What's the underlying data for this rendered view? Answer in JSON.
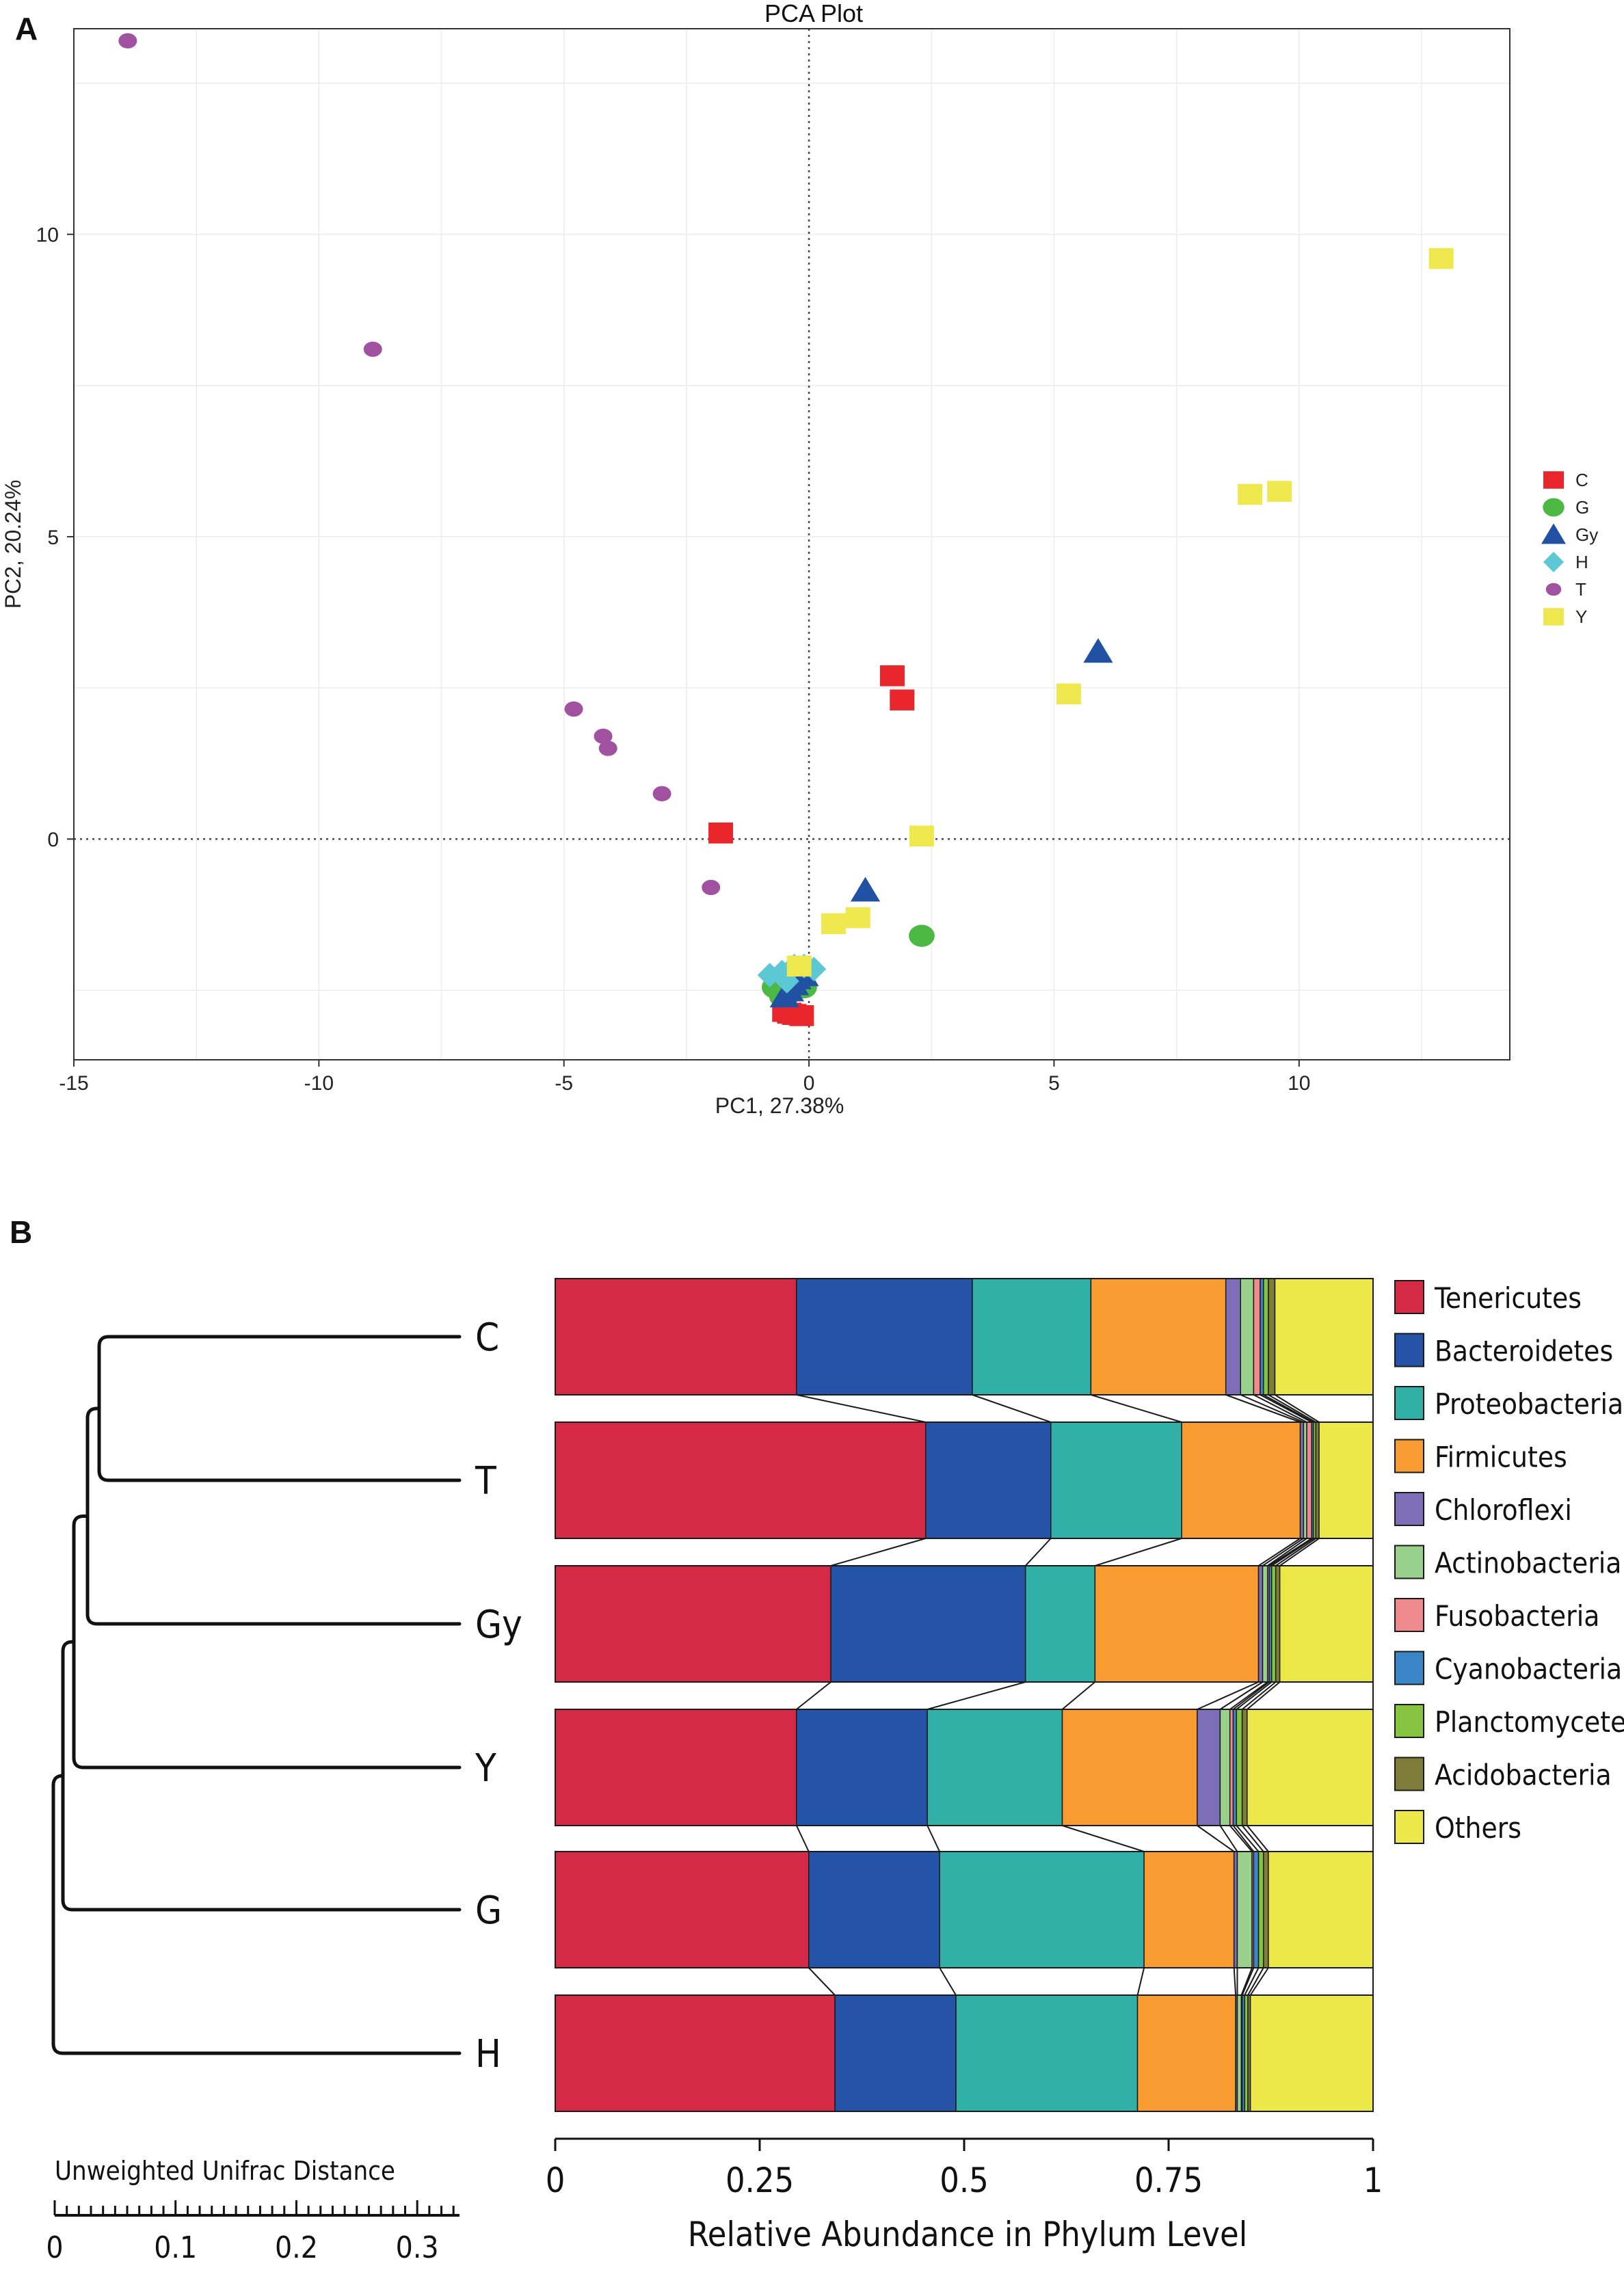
{
  "panels": {
    "a_label": "A",
    "b_label": "B"
  },
  "chart_data": [
    {
      "type": "scatter",
      "title": "PCA Plot",
      "xlabel": "PC1, 27.38%",
      "ylabel": "PC2, 20.24%",
      "xlim": [
        -15.0,
        14.3
      ],
      "ylim": [
        -3.65,
        13.4
      ],
      "xticks": [
        -15,
        -10,
        -5,
        0,
        5,
        10
      ],
      "yticks": [
        0,
        5,
        10
      ],
      "grid": true,
      "reference_lines": {
        "x": 0,
        "y": 0,
        "style": "dotted"
      },
      "legend_position": "right",
      "series": [
        {
          "name": "C",
          "marker": "square",
          "color": "#e8262b",
          "points": [
            [
              -1.8,
              0.1
            ],
            [
              1.7,
              2.7
            ],
            [
              1.9,
              2.3
            ],
            [
              -0.5,
              -2.85
            ],
            [
              -0.3,
              -2.9
            ],
            [
              -0.15,
              -2.92
            ],
            [
              -0.4,
              -2.88
            ]
          ]
        },
        {
          "name": "G",
          "marker": "circle",
          "color": "#4cb944",
          "points": [
            [
              2.3,
              -1.6
            ],
            [
              -0.7,
              -2.45
            ],
            [
              -0.5,
              -2.5
            ],
            [
              -0.1,
              -2.45
            ],
            [
              -0.25,
              -2.35
            ],
            [
              -0.55,
              -2.6
            ]
          ]
        },
        {
          "name": "Gy",
          "marker": "triangle",
          "color": "#2151a3",
          "points": [
            [
              5.9,
              3.1
            ],
            [
              1.15,
              -0.85
            ],
            [
              -0.1,
              -2.25
            ],
            [
              -0.3,
              -2.4
            ],
            [
              -0.4,
              -2.5
            ],
            [
              -0.5,
              -2.6
            ],
            [
              -0.25,
              -2.3
            ]
          ]
        },
        {
          "name": "H",
          "marker": "diamond",
          "color": "#5cc8d4",
          "points": [
            [
              -0.8,
              -2.25
            ],
            [
              -0.55,
              -2.2
            ],
            [
              -0.3,
              -2.1
            ],
            [
              -0.1,
              -2.1
            ],
            [
              0.1,
              -2.15
            ],
            [
              -0.45,
              -2.35
            ]
          ]
        },
        {
          "name": "T",
          "marker": "ellipse",
          "color": "#a0519f",
          "points": [
            [
              -13.9,
              13.2
            ],
            [
              -8.9,
              8.1
            ],
            [
              -4.8,
              2.15
            ],
            [
              -4.2,
              1.7
            ],
            [
              -4.1,
              1.5
            ],
            [
              -3.0,
              0.75
            ],
            [
              -2.0,
              -0.8
            ]
          ]
        },
        {
          "name": "Y",
          "marker": "square",
          "color": "#eee84e",
          "points": [
            [
              12.9,
              9.6
            ],
            [
              9.0,
              5.7
            ],
            [
              9.6,
              5.75
            ],
            [
              5.3,
              2.4
            ],
            [
              2.3,
              0.05
            ],
            [
              1.0,
              -1.3
            ],
            [
              0.5,
              -1.4
            ],
            [
              -0.2,
              -2.1
            ]
          ]
        }
      ]
    },
    {
      "type": "bar",
      "orientation": "horizontal",
      "stacked": true,
      "xlabel": "Relative Abundance in Phylum Level",
      "xlim": [
        0,
        1
      ],
      "xticks": [
        "0",
        "0.25",
        "0.5",
        "0.75",
        "1"
      ],
      "categories": [
        "C",
        "T",
        "Gy",
        "Y",
        "G",
        "H"
      ],
      "legend_position": "right",
      "series": [
        {
          "name": "Tenericutes",
          "color": "#d42a45",
          "values": [
            0.295,
            0.453,
            0.337,
            0.295,
            0.31,
            0.342
          ]
        },
        {
          "name": "Bacteroidetes",
          "color": "#2453a8",
          "values": [
            0.215,
            0.153,
            0.238,
            0.16,
            0.16,
            0.148
          ]
        },
        {
          "name": "Proteobacteria",
          "color": "#30b0a6",
          "values": [
            0.145,
            0.16,
            0.085,
            0.165,
            0.25,
            0.222
          ]
        },
        {
          "name": "Firmicutes",
          "color": "#f89c31",
          "values": [
            0.165,
            0.145,
            0.2,
            0.165,
            0.11,
            0.12
          ]
        },
        {
          "name": "Chloroflexi",
          "color": "#7c6fb8",
          "values": [
            0.018,
            0.004,
            0.005,
            0.028,
            0.004,
            0.002
          ]
        },
        {
          "name": "Actinobacteria",
          "color": "#98d08c",
          "values": [
            0.016,
            0.004,
            0.006,
            0.012,
            0.018,
            0.005
          ]
        },
        {
          "name": "Fusobacteria",
          "color": "#ef8a8e",
          "values": [
            0.008,
            0.006,
            0.002,
            0.004,
            0.002,
            0.001
          ]
        },
        {
          "name": "Cyanobacteria",
          "color": "#3a86c8",
          "values": [
            0.004,
            0.002,
            0.003,
            0.004,
            0.006,
            0.003
          ]
        },
        {
          "name": "Planctomycetes",
          "color": "#86c43f",
          "values": [
            0.006,
            0.003,
            0.005,
            0.007,
            0.006,
            0.004
          ]
        },
        {
          "name": "Acidobacteria",
          "color": "#7e7e3a",
          "values": [
            0.008,
            0.004,
            0.005,
            0.006,
            0.006,
            0.003
          ]
        },
        {
          "name": "Others",
          "color": "#ece84a",
          "values": [
            0.12,
            0.066,
            0.114,
            0.154,
            0.128,
            0.15
          ]
        }
      ]
    },
    {
      "type": "dendrogram",
      "title": "Unweighted Unifrac Distance",
      "scale_ticks": [
        "0",
        "0.1",
        "0.2",
        "0.3"
      ],
      "scale_range": [
        0,
        0.335
      ],
      "leaves": [
        "C",
        "T",
        "Gy",
        "Y",
        "G",
        "H"
      ],
      "merges": [
        {
          "leaves": [
            "C",
            "T"
          ],
          "height": 0.035
        },
        {
          "leaves": [
            "C",
            "T",
            "Gy"
          ],
          "height": 0.027
        },
        {
          "leaves": [
            "C",
            "T",
            "Gy",
            "Y"
          ],
          "height": 0.012
        },
        {
          "leaves": [
            "C",
            "T",
            "Gy",
            "Y",
            "G"
          ],
          "height": 0.004
        },
        {
          "leaves": [
            "C",
            "T",
            "Gy",
            "Y",
            "G",
            "H"
          ],
          "height": 0.001
        }
      ]
    }
  ]
}
